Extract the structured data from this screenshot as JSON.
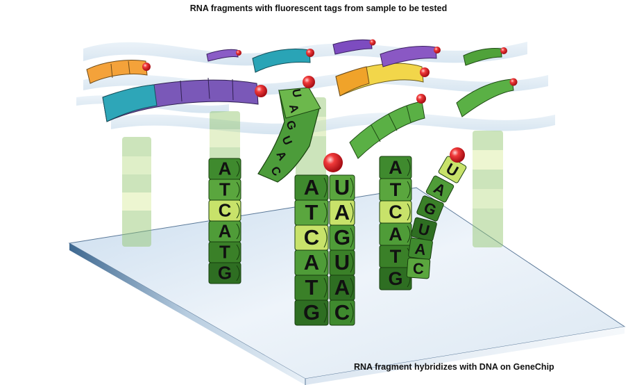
{
  "title": "RNA fragments with fluorescent tags from sample to be tested",
  "footer": "RNA fragment hybridizes with DNA on GeneChip",
  "dna_probe_left": {
    "bases": [
      "A",
      "T",
      "C",
      "A",
      "T",
      "G"
    ]
  },
  "dna_probe_center": {
    "bases": [
      "A",
      "T",
      "C",
      "A",
      "T",
      "G"
    ]
  },
  "rna_bound_center": {
    "bases": [
      "U",
      "A",
      "G",
      "U",
      "A",
      "C"
    ]
  },
  "dna_probe_right": {
    "bases": [
      "A",
      "T",
      "C",
      "A",
      "T",
      "G"
    ]
  },
  "rna_bound_right": {
    "bases": [
      "U",
      "A",
      "G",
      "U",
      "A",
      "C"
    ]
  },
  "rna_floating_curved": {
    "bases": [
      "U",
      "A",
      "G",
      "U",
      "A",
      "C"
    ]
  },
  "colors": {
    "probe_green": "#5a9a3c",
    "probe_light": "#c6e06a",
    "tag_red": "#e0202a",
    "chip_surface": "#e4eef7",
    "chip_edge": "#6a86a8"
  }
}
